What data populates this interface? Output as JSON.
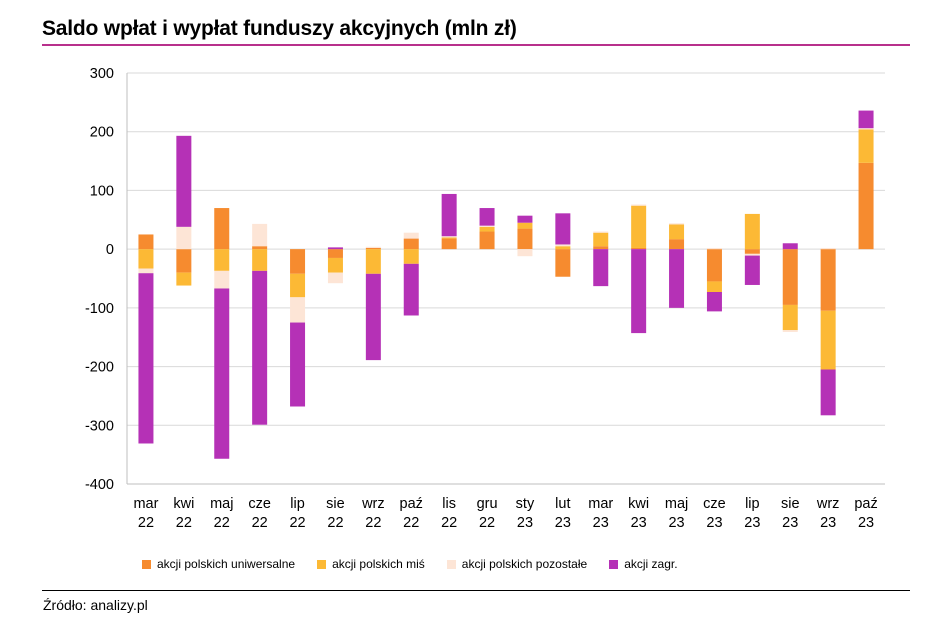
{
  "title": "Saldo wpłat i wypłat funduszy akcyjnych (mln zł)",
  "source": "Źródło: analizy.pl",
  "chart_data": {
    "type": "bar",
    "stacked": true,
    "title": "Saldo wpłat i wypłat funduszy akcyjnych (mln zł)",
    "xlabel": "",
    "ylabel": "",
    "ylim": [
      -400,
      300
    ],
    "yticks": [
      300,
      200,
      100,
      0,
      -100,
      -200,
      -300,
      -400
    ],
    "grid": true,
    "legend_position": "bottom",
    "categories": [
      [
        "mar",
        "22"
      ],
      [
        "kwi",
        "22"
      ],
      [
        "maj",
        "22"
      ],
      [
        "cze",
        "22"
      ],
      [
        "lip",
        "22"
      ],
      [
        "sie",
        "22"
      ],
      [
        "wrz",
        "22"
      ],
      [
        "paź",
        "22"
      ],
      [
        "lis",
        "22"
      ],
      [
        "gru",
        "22"
      ],
      [
        "sty",
        "23"
      ],
      [
        "lut",
        "23"
      ],
      [
        "mar",
        "23"
      ],
      [
        "kwi",
        "23"
      ],
      [
        "maj",
        "23"
      ],
      [
        "cze",
        "23"
      ],
      [
        "lip",
        "23"
      ],
      [
        "sie",
        "23"
      ],
      [
        "wrz",
        "23"
      ],
      [
        "paź",
        "23"
      ]
    ],
    "series": [
      {
        "name": "akcji polskich uniwersalne",
        "color": "#f68b2f",
        "values": [
          25,
          -40,
          70,
          5,
          -42,
          -15,
          2,
          18,
          18,
          30,
          35,
          -47,
          5,
          2,
          17,
          -55,
          -8,
          -95,
          -105,
          147
        ]
      },
      {
        "name": "akcji polskich miś",
        "color": "#fcb935",
        "values": [
          -33,
          -22,
          -37,
          -37,
          -40,
          -25,
          -42,
          -25,
          2,
          8,
          10,
          5,
          23,
          72,
          25,
          -18,
          60,
          -43,
          -100,
          57
        ]
      },
      {
        "name": "akcji polskich pozostałe",
        "color": "#fde5d6",
        "values": [
          -8,
          38,
          -30,
          38,
          -43,
          -18,
          2,
          10,
          2,
          2,
          -12,
          3,
          2,
          2,
          2,
          2,
          -3,
          -3,
          2,
          2
        ]
      },
      {
        "name": "akcji zagr.",
        "color": "#b531b6",
        "values": [
          -290,
          155,
          -290,
          -262,
          -143,
          3,
          -147,
          -88,
          72,
          30,
          12,
          53,
          -63,
          -143,
          -100,
          -33,
          -50,
          10,
          -78,
          30
        ]
      }
    ]
  }
}
